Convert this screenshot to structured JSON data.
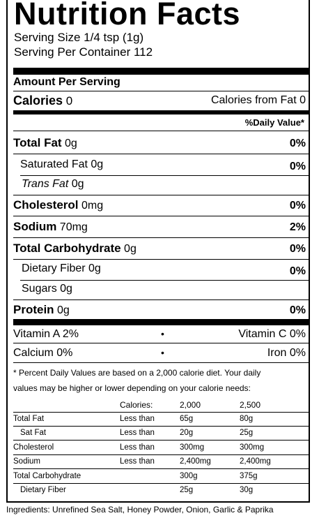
{
  "title": "Nutrition Facts",
  "serving_size": "Serving Size 1/4 tsp (1g)",
  "servings_per_container": "Serving Per Container 112",
  "amount_per_serving": "Amount Per Serving",
  "calories": {
    "label": "Calories",
    "value": "0",
    "from_fat": "Calories from Fat 0"
  },
  "daily_value_header": "%Daily Value*",
  "nutrients": [
    {
      "label": "Total Fat",
      "amount": "0g",
      "dv": "0%"
    },
    {
      "label": "Saturated Fat",
      "amount": "0g",
      "dv": "0%"
    },
    {
      "label": "Trans Fat",
      "amount": "0g",
      "dv": ""
    },
    {
      "label": "Cholesterol",
      "amount": "0mg",
      "dv": "0%"
    },
    {
      "label": "Sodium",
      "amount": "70mg",
      "dv": "2%"
    },
    {
      "label": "Total Carbohydrate",
      "amount": "0g",
      "dv": "0%"
    },
    {
      "label": "Dietary Fiber",
      "amount": "0g",
      "dv": "0%"
    },
    {
      "label": "Sugars",
      "amount": "0g",
      "dv": ""
    },
    {
      "label": "Protein",
      "amount": "0g",
      "dv": "0%"
    }
  ],
  "vitamins": {
    "vitamin_a": "Vitamin A 2%",
    "vitamin_c": "Vitamin C 0%",
    "calcium": "Calcium 0%",
    "iron": "Iron 0%",
    "bullet": "•"
  },
  "footnote": {
    "line1": "* Percent Daily Values are based on a 2,000 calorie diet. Your daily",
    "line2": "values may be higher or lower depending on your calorie needs:"
  },
  "dv_table": {
    "header": [
      "Calories:",
      "2,000",
      "2,500"
    ],
    "rows": [
      {
        "label": "Total Fat",
        "cmp": "Less than",
        "v1": "65g",
        "v2": "80g"
      },
      {
        "label": "Sat Fat",
        "cmp": "Less than",
        "v1": "20g",
        "v2": "25g"
      },
      {
        "label": "Cholesterol",
        "cmp": "Less than",
        "v1": "300mg",
        "v2": "300mg"
      },
      {
        "label": "Sodium",
        "cmp": "Less than",
        "v1": "2,400mg",
        "v2": "2,400mg"
      },
      {
        "label": "Total Carbohydrate",
        "cmp": "",
        "v1": "300g",
        "v2": "375g"
      },
      {
        "label": "Dietary Fiber",
        "cmp": "",
        "v1": "25g",
        "v2": "30g"
      }
    ]
  },
  "ingredients": "Ingredients: Unrefined Sea Salt, Honey Powder, Onion, Garlic & Paprika"
}
